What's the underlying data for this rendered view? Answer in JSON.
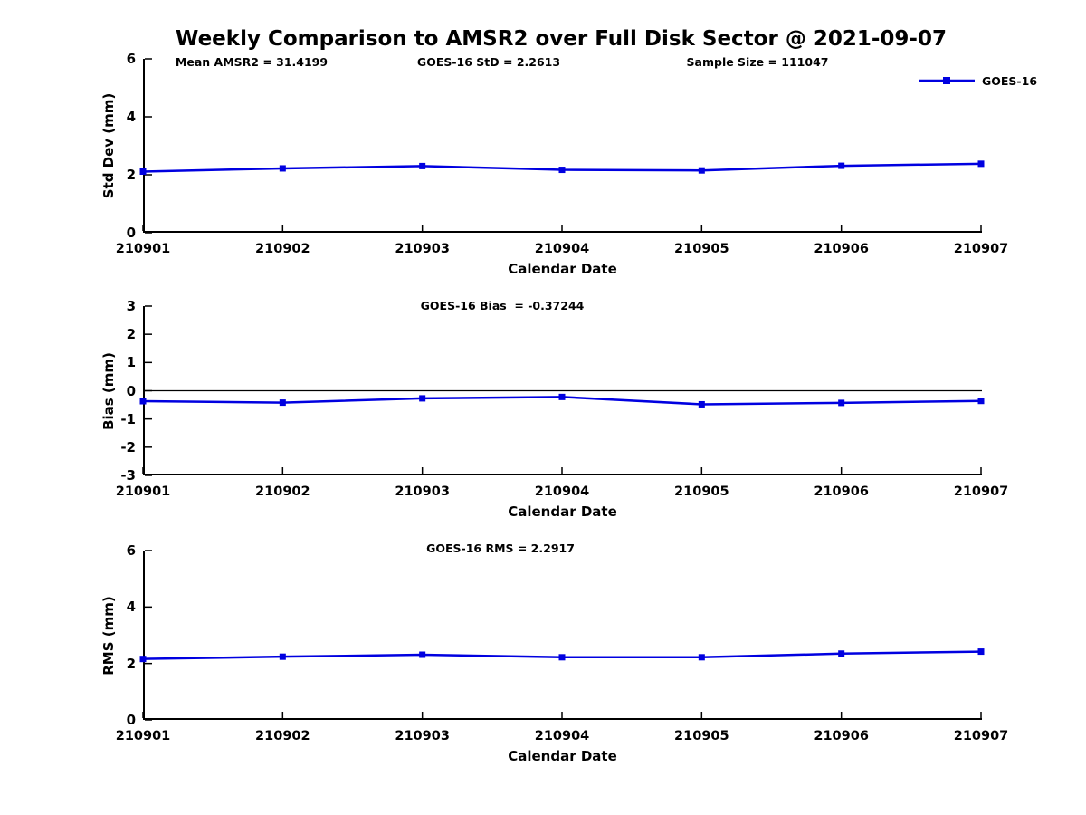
{
  "title": "Weekly Comparison to AMSR2 over Full Disk Sector @ 2021-09-07",
  "annotations": {
    "mean_amsr2": "Mean AMSR2 = 31.4199",
    "goes_std": "GOES-16 StD = 2.2613",
    "sample_size": "Sample Size = 111047"
  },
  "legend": {
    "label": "GOES-16",
    "color": "#0000e0",
    "marker": "square"
  },
  "colors": {
    "line": "#0000e0",
    "axis": "#000000",
    "text": "#000000",
    "background": "#ffffff"
  },
  "chart_data": [
    {
      "type": "line",
      "title": "",
      "xlabel": "Calendar Date",
      "ylabel": "Std Dev (mm)",
      "ylim": [
        0,
        6
      ],
      "yticks": [
        0,
        2,
        4,
        6
      ],
      "grid": false,
      "legend_position": "top-right-outside",
      "categories": [
        "210901",
        "210902",
        "210903",
        "210904",
        "210905",
        "210906",
        "210907"
      ],
      "series": [
        {
          "name": "GOES-16",
          "color": "#0000e0",
          "marker": "square",
          "values": [
            2.11,
            2.22,
            2.3,
            2.17,
            2.15,
            2.31,
            2.38
          ]
        }
      ]
    },
    {
      "type": "line",
      "title": "GOES-16 Bias  = -0.37244",
      "xlabel": "Calendar Date",
      "ylabel": "Bias (mm)",
      "ylim": [
        -3,
        3
      ],
      "yticks": [
        3,
        2,
        1,
        0,
        -1,
        -2,
        -3
      ],
      "zero_line": true,
      "grid": false,
      "categories": [
        "210901",
        "210902",
        "210903",
        "210904",
        "210905",
        "210906",
        "210907"
      ],
      "series": [
        {
          "name": "GOES-16",
          "color": "#0000e0",
          "marker": "square",
          "values": [
            -0.37,
            -0.42,
            -0.27,
            -0.22,
            -0.48,
            -0.43,
            -0.36
          ]
        }
      ]
    },
    {
      "type": "line",
      "title": "GOES-16 RMS = 2.2917",
      "xlabel": "Calendar Date",
      "ylabel": "RMS (mm)",
      "ylim": [
        0,
        6
      ],
      "yticks": [
        0,
        2,
        4,
        6
      ],
      "grid": false,
      "categories": [
        "210901",
        "210902",
        "210903",
        "210904",
        "210905",
        "210906",
        "210907"
      ],
      "series": [
        {
          "name": "GOES-16",
          "color": "#0000e0",
          "marker": "square",
          "values": [
            2.16,
            2.24,
            2.31,
            2.22,
            2.22,
            2.35,
            2.42
          ]
        }
      ]
    }
  ]
}
